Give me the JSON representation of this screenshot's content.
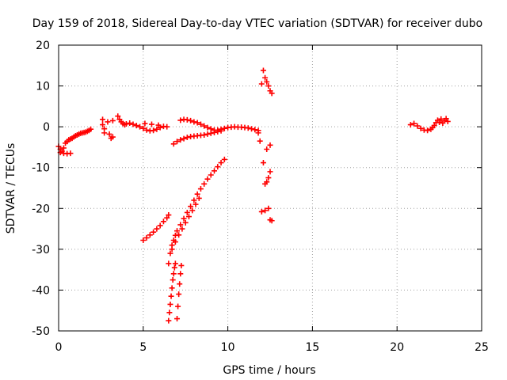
{
  "chart_data": {
    "type": "scatter",
    "title": "Day 159 of 2018, Sidereal Day-to-day VTEC variation (SDTVAR) for receiver dubo",
    "xlabel": "GPS time / hours",
    "ylabel": "SDTVAR / TECUs",
    "xlim": [
      0,
      25
    ],
    "ylim": [
      -50,
      20
    ],
    "xticks": [
      "0",
      "5",
      "10",
      "15",
      "20",
      "25"
    ],
    "yticks": [
      "20",
      "10",
      "0",
      "-10",
      "-20",
      "-30",
      "-40",
      "-50"
    ],
    "grid": true,
    "marker": "plus",
    "color": "#ff0000",
    "series": [
      {
        "points": [
          [
            0.0,
            -4.8
          ],
          [
            0.1,
            -5.5
          ],
          [
            0.2,
            -6.0
          ],
          [
            0.3,
            -5.2
          ],
          [
            0.4,
            -4.0
          ],
          [
            0.5,
            -3.6
          ],
          [
            0.6,
            -3.2
          ],
          [
            0.7,
            -3.0
          ],
          [
            0.8,
            -2.8
          ],
          [
            0.9,
            -2.5
          ],
          [
            1.0,
            -2.2
          ],
          [
            1.1,
            -2.0
          ],
          [
            1.2,
            -1.8
          ],
          [
            1.3,
            -1.6
          ],
          [
            1.4,
            -1.5
          ],
          [
            1.5,
            -1.4
          ],
          [
            1.6,
            -1.3
          ],
          [
            1.7,
            -1.1
          ],
          [
            1.8,
            -0.9
          ],
          [
            1.9,
            -0.6
          ],
          [
            0.1,
            -6.3
          ],
          [
            0.3,
            -6.5
          ],
          [
            0.5,
            -6.6
          ],
          [
            0.7,
            -6.5
          ],
          [
            2.6,
            1.8
          ],
          [
            2.6,
            0.5
          ],
          [
            2.7,
            -0.5
          ],
          [
            2.7,
            -1.5
          ],
          [
            2.9,
            1.2
          ],
          [
            3.0,
            -1.8
          ],
          [
            3.1,
            -2.8
          ],
          [
            3.2,
            1.5
          ],
          [
            3.2,
            -2.5
          ],
          [
            3.5,
            2.6
          ],
          [
            3.6,
            1.8
          ],
          [
            3.7,
            1.2
          ],
          [
            3.8,
            0.8
          ],
          [
            3.9,
            0.5
          ],
          [
            4.0,
            0.7
          ],
          [
            4.2,
            0.9
          ],
          [
            4.4,
            0.6
          ],
          [
            4.6,
            0.3
          ],
          [
            4.8,
            0.0
          ],
          [
            5.0,
            -0.4
          ],
          [
            5.2,
            -0.8
          ],
          [
            5.4,
            -1.0
          ],
          [
            5.6,
            -0.9
          ],
          [
            5.8,
            -0.6
          ],
          [
            6.0,
            -0.2
          ],
          [
            6.2,
            0.1
          ],
          [
            6.4,
            0.0
          ],
          [
            5.9,
            0.4
          ],
          [
            5.5,
            0.6
          ],
          [
            5.1,
            0.8
          ],
          [
            7.2,
            1.6
          ],
          [
            7.4,
            1.8
          ],
          [
            7.6,
            1.7
          ],
          [
            7.8,
            1.5
          ],
          [
            8.0,
            1.2
          ],
          [
            8.2,
            1.0
          ],
          [
            8.4,
            0.6
          ],
          [
            8.6,
            0.2
          ],
          [
            8.8,
            -0.2
          ],
          [
            9.0,
            -0.5
          ],
          [
            9.2,
            -0.8
          ],
          [
            9.4,
            -0.8
          ],
          [
            9.6,
            -0.6
          ],
          [
            9.8,
            -0.4
          ],
          [
            10.0,
            -0.2
          ],
          [
            10.2,
            -0.1
          ],
          [
            10.4,
            0.0
          ],
          [
            10.6,
            -0.1
          ],
          [
            10.8,
            -0.1
          ],
          [
            11.0,
            -0.2
          ],
          [
            11.2,
            -0.3
          ],
          [
            11.4,
            -0.5
          ],
          [
            11.6,
            -0.7
          ],
          [
            11.8,
            -0.9
          ],
          [
            6.8,
            -4.2
          ],
          [
            7.0,
            -3.6
          ],
          [
            7.2,
            -3.2
          ],
          [
            7.4,
            -2.9
          ],
          [
            7.6,
            -2.6
          ],
          [
            7.8,
            -2.4
          ],
          [
            8.0,
            -2.3
          ],
          [
            8.2,
            -2.2
          ],
          [
            8.4,
            -2.1
          ],
          [
            8.6,
            -2.0
          ],
          [
            8.8,
            -1.8
          ],
          [
            9.0,
            -1.6
          ],
          [
            9.2,
            -1.4
          ],
          [
            9.4,
            -1.2
          ],
          [
            9.6,
            -1.0
          ],
          [
            5.0,
            -27.8
          ],
          [
            5.2,
            -27.2
          ],
          [
            5.4,
            -26.5
          ],
          [
            5.6,
            -25.8
          ],
          [
            5.8,
            -25.0
          ],
          [
            6.0,
            -24.2
          ],
          [
            6.2,
            -23.2
          ],
          [
            6.4,
            -22.3
          ],
          [
            6.5,
            -21.6
          ],
          [
            6.5,
            -33.5
          ],
          [
            6.6,
            -31.0
          ],
          [
            6.7,
            -29.0
          ],
          [
            6.8,
            -27.8
          ],
          [
            6.9,
            -26.6
          ],
          [
            7.0,
            -25.5
          ],
          [
            7.2,
            -24.0
          ],
          [
            7.4,
            -22.5
          ],
          [
            7.6,
            -21.0
          ],
          [
            7.8,
            -19.5
          ],
          [
            8.0,
            -18.0
          ],
          [
            8.2,
            -16.5
          ],
          [
            8.4,
            -15.2
          ],
          [
            8.6,
            -14.0
          ],
          [
            8.8,
            -12.8
          ],
          [
            9.0,
            -11.8
          ],
          [
            9.2,
            -10.8
          ],
          [
            9.4,
            -9.8
          ],
          [
            9.6,
            -8.8
          ],
          [
            9.8,
            -8.0
          ],
          [
            6.7,
            -30.0
          ],
          [
            6.9,
            -28.2
          ],
          [
            7.1,
            -26.5
          ],
          [
            7.3,
            -25.0
          ],
          [
            7.5,
            -23.5
          ],
          [
            7.7,
            -22.0
          ],
          [
            7.9,
            -20.5
          ],
          [
            8.1,
            -19.0
          ],
          [
            8.3,
            -17.5
          ],
          [
            6.5,
            -47.5
          ],
          [
            6.55,
            -45.5
          ],
          [
            6.6,
            -43.5
          ],
          [
            6.65,
            -41.5
          ],
          [
            6.7,
            -39.5
          ],
          [
            6.75,
            -37.5
          ],
          [
            6.8,
            -36.0
          ],
          [
            6.85,
            -34.5
          ],
          [
            6.9,
            -33.5
          ],
          [
            7.0,
            -47.0
          ],
          [
            7.05,
            -44.0
          ],
          [
            7.1,
            -41.0
          ],
          [
            7.15,
            -38.5
          ],
          [
            7.2,
            -36.0
          ],
          [
            7.25,
            -34.0
          ],
          [
            12.0,
            10.5
          ],
          [
            12.1,
            13.8
          ],
          [
            12.2,
            12.0
          ],
          [
            12.3,
            11.0
          ],
          [
            12.4,
            10.0
          ],
          [
            12.5,
            8.8
          ],
          [
            12.6,
            8.2
          ],
          [
            11.8,
            -1.5
          ],
          [
            11.9,
            -3.5
          ],
          [
            12.3,
            -5.5
          ],
          [
            12.5,
            -4.5
          ],
          [
            12.1,
            -8.8
          ],
          [
            12.5,
            -11.0
          ],
          [
            12.4,
            -12.5
          ],
          [
            12.3,
            -13.5
          ],
          [
            12.2,
            -14.0
          ],
          [
            12.0,
            -20.8
          ],
          [
            12.2,
            -20.5
          ],
          [
            12.4,
            -20.0
          ],
          [
            12.5,
            -22.8
          ],
          [
            12.6,
            -23.0
          ],
          [
            20.8,
            0.5
          ],
          [
            21.0,
            0.8
          ],
          [
            21.2,
            0.2
          ],
          [
            21.4,
            -0.4
          ],
          [
            21.6,
            -0.8
          ],
          [
            21.8,
            -0.9
          ],
          [
            22.0,
            -0.6
          ],
          [
            22.1,
            -0.2
          ],
          [
            22.2,
            0.3
          ],
          [
            22.3,
            1.0
          ],
          [
            22.4,
            1.6
          ],
          [
            22.6,
            1.9
          ],
          [
            22.8,
            1.5
          ],
          [
            23.0,
            1.3
          ],
          [
            22.9,
            2.0
          ],
          [
            22.7,
            0.9
          ],
          [
            22.5,
            1.1
          ]
        ]
      }
    ]
  }
}
